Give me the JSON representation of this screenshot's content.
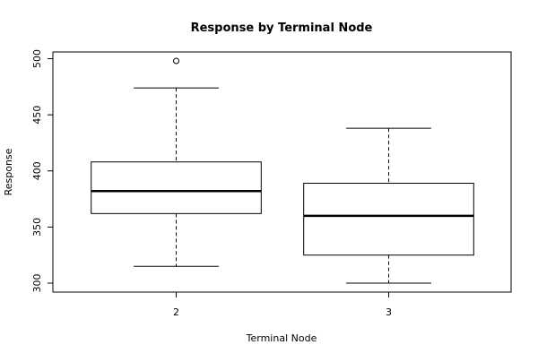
{
  "chart_data": {
    "type": "box",
    "title": "Response by Terminal Node",
    "x_label": "Terminal Node",
    "y_label": "Response",
    "categories": [
      "2",
      "3"
    ],
    "boxes": [
      {
        "min": 315,
        "q1": 362,
        "median": 382,
        "q3": 408,
        "max": 474,
        "outliers": [
          498
        ]
      },
      {
        "min": 300,
        "q1": 325,
        "median": 360,
        "q3": 389,
        "max": 438
      }
    ],
    "ylim": [
      292,
      506
    ],
    "yticks": [
      300,
      350,
      400,
      450,
      500
    ],
    "color": "#ffffff"
  }
}
